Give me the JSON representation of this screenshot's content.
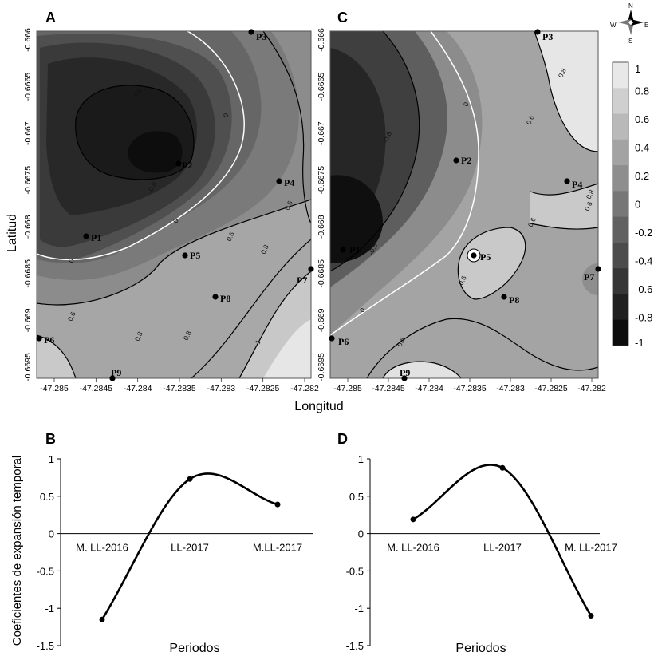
{
  "panel_letters": [
    "A",
    "C",
    "B",
    "D"
  ],
  "compass": {
    "n": "N",
    "s": "S",
    "e": "E",
    "w": "W"
  },
  "colorbar": {
    "ticks": [
      "1",
      "0.8",
      "0.6",
      "0.4",
      "0.2",
      "0",
      "-0.2",
      "-0.4",
      "-0.6",
      "-0.8",
      "-1"
    ],
    "colors": [
      "#e8e8e8",
      "#cfcfcf",
      "#b9b9b9",
      "#a3a3a3",
      "#8e8e8e",
      "#777777",
      "#616161",
      "#4c4c4c",
      "#363636",
      "#202020",
      "#0c0c0c"
    ]
  },
  "map_axes": {
    "ylabel": "Latitud",
    "xlabel": "Longitud",
    "xticks": [
      "-47.285",
      "-47.2845",
      "-47.284",
      "-47.2835",
      "-47.283",
      "-47.2825",
      "-47.282"
    ],
    "yticks": [
      "-0.666",
      "-0.6665",
      "-0.667",
      "-0.6675",
      "-0.668",
      "-0.6685",
      "-0.669",
      "-0.6695"
    ]
  },
  "contour_labels_A": [
    "-0.6",
    "-0.8",
    "0",
    "0",
    "0",
    "0.6",
    "0.6",
    "0.8",
    "0.8",
    "0.6",
    "0.8",
    "1"
  ],
  "contour_labels_C": [
    "0",
    "0",
    "-0.6",
    "-0.8",
    "0.8",
    "0.6",
    "0.6",
    "0.6",
    "0.6",
    "0.6",
    "0.8"
  ],
  "chart_data": [
    {
      "type": "line",
      "panel": "B",
      "categories": [
        "M. LL-2016",
        "LL-2017",
        "M.LL-2017"
      ],
      "values": [
        -1.15,
        0.73,
        0.39
      ],
      "xlabel": "Periodos",
      "ylabel": "Coeficientes de expansión temporal",
      "yticks": [
        "1",
        "0.5",
        "0",
        "-0.5",
        "-1",
        "-1.5"
      ],
      "ylim": [
        -1.5,
        1
      ],
      "grid": false
    },
    {
      "type": "line",
      "panel": "D",
      "categories": [
        "M. LL-2016",
        "LL-2017",
        "M. LL-2017"
      ],
      "values": [
        0.19,
        0.88,
        -1.1
      ],
      "xlabel": "Periodos",
      "ylabel": "",
      "yticks": [
        "1",
        "0.5",
        "0",
        "-0.5",
        "-1",
        "-1.5"
      ],
      "ylim": [
        -1.5,
        1
      ],
      "grid": false
    }
  ],
  "points_A": [
    "P1",
    "P2",
    "P3",
    "P4",
    "P5",
    "P6",
    "P7",
    "P8",
    "P9"
  ],
  "points_C": [
    "P1",
    "P2",
    "P3",
    "P4",
    "P5",
    "P6",
    "P7",
    "P8",
    "P9"
  ]
}
